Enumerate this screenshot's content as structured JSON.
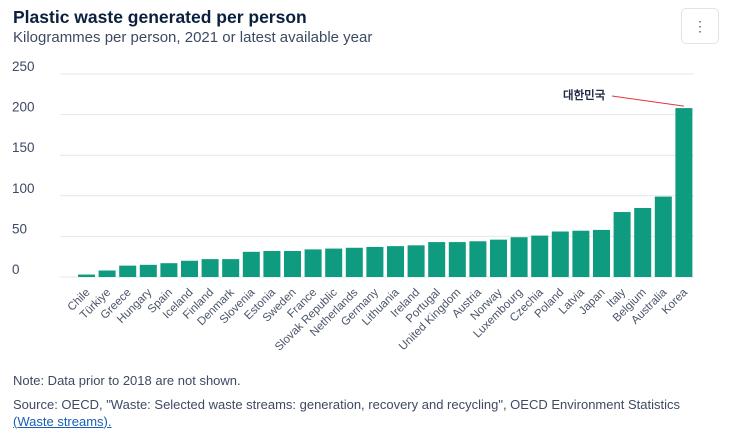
{
  "menu": {
    "icon": "kebab-menu-icon",
    "glyph": "⋮"
  },
  "note": "Note: Data prior to 2018 are not shown.",
  "source": {
    "text": "Source: OECD, \"Waste: Selected waste streams: generation, recovery and recycling\", OECD Environment Statistics",
    "link_open": "(",
    "link_text": "Waste streams",
    "link_close": ")."
  },
  "colors": {
    "bar": "#0f9b7f",
    "grid": "#e4e7ec",
    "annotation_line": "#e0373b"
  },
  "chart_data": {
    "type": "bar",
    "title": "Plastic waste generated per person",
    "subtitle": "Kilogrammes per person, 2021 or latest available year",
    "xlabel": "",
    "ylabel": "",
    "ylim": [
      0,
      250
    ],
    "yticks": [
      0,
      50,
      100,
      150,
      200,
      250
    ],
    "grid": true,
    "categories": [
      "Chile",
      "Türkiye",
      "Greece",
      "Hungary",
      "Spain",
      "Iceland",
      "Finland",
      "Denmark",
      "Slovenia",
      "Estonia",
      "Sweden",
      "France",
      "Slovak Republic",
      "Netherlands",
      "Germany",
      "Lithuania",
      "Ireland",
      "Portugal",
      "United Kingdom",
      "Austria",
      "Norway",
      "Luxembourg",
      "Czechia",
      "Poland",
      "Latvia",
      "Japan",
      "Italy",
      "Belgium",
      "Australia",
      "Korea"
    ],
    "values": [
      3,
      8,
      14,
      15,
      17,
      20,
      22,
      22,
      31,
      32,
      32,
      34,
      35,
      36,
      37,
      38,
      39,
      43,
      43,
      44,
      46,
      49,
      51,
      56,
      57,
      58,
      80,
      85,
      99,
      208
    ],
    "annotation": {
      "label": "대한민국",
      "category": "Korea"
    }
  }
}
